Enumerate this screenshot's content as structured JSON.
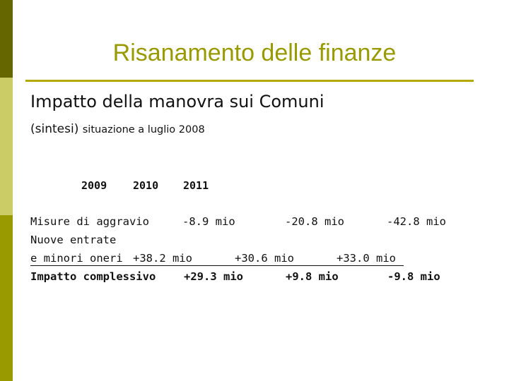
{
  "title": "Risanamento delle finanze",
  "heading": "Impatto della manovra sui Comuni",
  "subheading": {
    "prefix": "(sintesi)",
    "rest": "situazione a luglio 2008"
  },
  "years": [
    "2009",
    "2010",
    "2011"
  ],
  "rows": [
    {
      "label": "Misure di aggravio",
      "values": [
        "-8.9 mio",
        "-20.8 mio",
        "-42.8 mio"
      ]
    },
    {
      "label_line1": "Nuove entrate",
      "label_line2": "e minori oneri",
      "values": [
        "+38.2 mio",
        "+30.6 mio",
        "+33.0 mio"
      ]
    },
    {
      "label": "Impatto complessivo",
      "values": [
        "+29.3 mio",
        "+9.8 mio",
        "-9.8 mio"
      ]
    }
  ],
  "colors": {
    "title": "#999900",
    "sidebar_dark": "#666600",
    "sidebar_light": "#cccc66",
    "sidebar_mid": "#999900"
  }
}
